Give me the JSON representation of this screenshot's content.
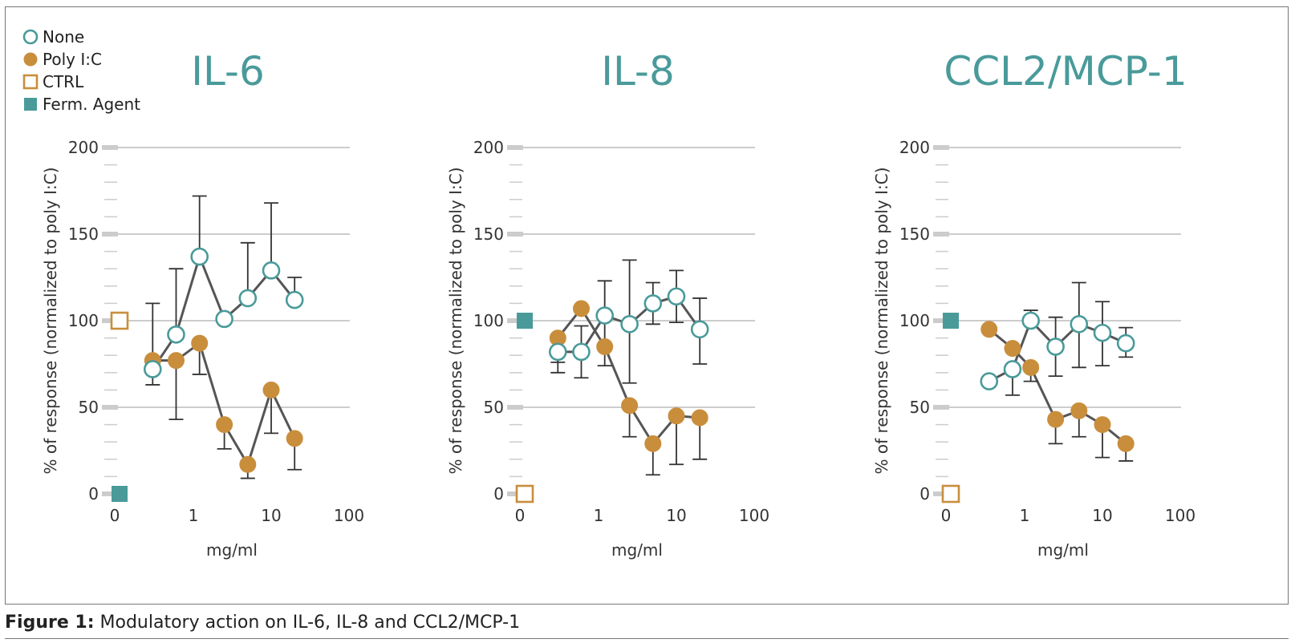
{
  "legend": [
    {
      "label": "None",
      "marker": "open-circle"
    },
    {
      "label": "Poly I:C",
      "marker": "filled-circle"
    },
    {
      "label": "CTRL",
      "marker": "open-square"
    },
    {
      "label": "Ferm. Agent",
      "marker": "filled-square"
    }
  ],
  "colors": {
    "teal": "#4a9a9a",
    "orange": "#c98e3c",
    "line": "#555555",
    "grid": "#bbbbbb",
    "tick": "#cccccc"
  },
  "caption": {
    "label": "Figure 1:",
    "text": " Modulatory action on IL-6, IL-8 and CCL2/MCP-1"
  },
  "chart_data": [
    {
      "type": "scatter",
      "title": "IL-6",
      "xlabel": "mg/ml",
      "ylabel": "% of response (normalized to poly I:C)",
      "x_ticks": [
        "0",
        "1",
        "10",
        "100"
      ],
      "y_ticks": [
        0,
        50,
        100,
        150,
        200
      ],
      "ylim": [
        0,
        200
      ],
      "controls": {
        "CTRL": 100,
        "Ferm. Agent": 0
      },
      "series": [
        {
          "name": "None",
          "x": [
            0.3,
            0.6,
            1.2,
            2.5,
            5,
            10,
            20
          ],
          "values": [
            72,
            92,
            137,
            101,
            113,
            129,
            112
          ],
          "err_upper": [
            null,
            130,
            172,
            null,
            145,
            168,
            125
          ],
          "err_lower": [
            null,
            null,
            null,
            null,
            null,
            null,
            null
          ]
        },
        {
          "name": "Poly I:C",
          "x": [
            0.3,
            0.6,
            1.2,
            2.5,
            5,
            10,
            20
          ],
          "values": [
            77,
            77,
            87,
            40,
            17,
            60,
            32
          ],
          "err_upper": [
            110,
            null,
            null,
            null,
            null,
            null,
            null
          ],
          "err_lower": [
            63,
            43,
            69,
            26,
            9,
            35,
            14
          ]
        }
      ]
    },
    {
      "type": "scatter",
      "title": "IL-8",
      "xlabel": "mg/ml",
      "ylabel": "% of response (normalized to poly I:C)",
      "x_ticks": [
        "0",
        "1",
        "10",
        "100"
      ],
      "y_ticks": [
        0,
        50,
        100,
        150,
        200
      ],
      "ylim": [
        0,
        200
      ],
      "controls": {
        "CTRL": 0,
        "Ferm. Agent": 100
      },
      "series": [
        {
          "name": "None",
          "x": [
            0.3,
            0.6,
            1.2,
            2.5,
            5,
            10,
            20
          ],
          "values": [
            82,
            82,
            103,
            98,
            110,
            114,
            95
          ],
          "err_upper": [
            null,
            97,
            123,
            135,
            122,
            129,
            113
          ],
          "err_lower": [
            70,
            67,
            74,
            64,
            98,
            99,
            75
          ]
        },
        {
          "name": "Poly I:C",
          "x": [
            0.3,
            0.6,
            1.2,
            2.5,
            5,
            10,
            20
          ],
          "values": [
            90,
            107,
            85,
            51,
            29,
            45,
            44
          ],
          "err_upper": [
            null,
            null,
            null,
            null,
            null,
            null,
            null
          ],
          "err_lower": [
            76,
            null,
            null,
            33,
            11,
            17,
            20
          ]
        }
      ]
    },
    {
      "type": "scatter",
      "title": "CCL2/MCP-1",
      "xlabel": "mg/ml",
      "ylabel": "% of response (normalized to poly I:C)",
      "x_ticks": [
        "0",
        "1",
        "10",
        "100"
      ],
      "y_ticks": [
        0,
        50,
        100,
        150,
        200
      ],
      "ylim": [
        0,
        200
      ],
      "controls": {
        "CTRL": 0,
        "Ferm. Agent": 100
      },
      "series": [
        {
          "name": "None",
          "x": [
            0.35,
            0.7,
            1.2,
            2.5,
            5,
            10,
            20
          ],
          "values": [
            65,
            72,
            100,
            85,
            98,
            93,
            87
          ],
          "err_upper": [
            null,
            null,
            106,
            102,
            122,
            111,
            96
          ],
          "err_lower": [
            null,
            57,
            null,
            68,
            73,
            74,
            79
          ]
        },
        {
          "name": "Poly I:C",
          "x": [
            0.35,
            0.7,
            1.2,
            2.5,
            5,
            10,
            20
          ],
          "values": [
            95,
            84,
            73,
            43,
            48,
            40,
            29
          ],
          "err_upper": [
            null,
            null,
            null,
            null,
            null,
            null,
            null
          ],
          "err_lower": [
            null,
            null,
            65,
            29,
            33,
            21,
            19
          ]
        }
      ]
    }
  ]
}
